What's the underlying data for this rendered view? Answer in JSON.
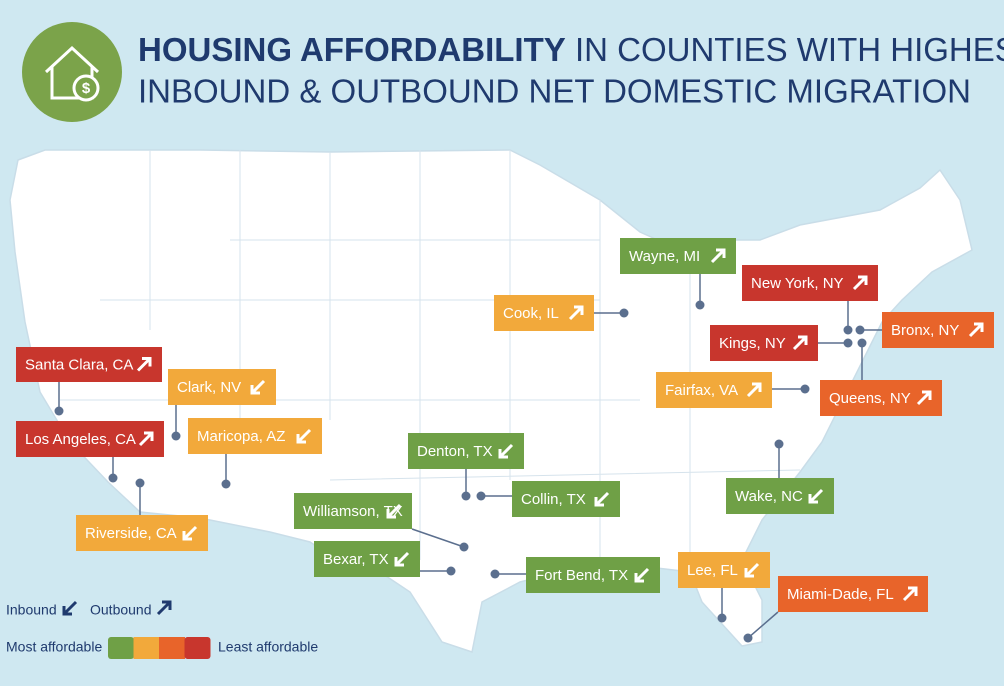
{
  "header": {
    "title_bold": "HOUSING AFFORDABILITY",
    "title_rest": "IN COUNTIES WITH HIGHEST",
    "title_line2": "INBOUND & OUTBOUND NET DOMESTIC MIGRATION"
  },
  "counties": [
    {
      "label": "Wayne, MI",
      "direction": "outbound",
      "color": "#6fa046"
    },
    {
      "label": "New York, NY",
      "direction": "outbound",
      "color": "#c8362d"
    },
    {
      "label": "Cook, IL",
      "direction": "outbound",
      "color": "#f2a93b"
    },
    {
      "label": "Kings, NY",
      "direction": "outbound",
      "color": "#c8362d"
    },
    {
      "label": "Bronx, NY",
      "direction": "outbound",
      "color": "#e8642a"
    },
    {
      "label": "Santa Clara, CA",
      "direction": "outbound",
      "color": "#c8362d"
    },
    {
      "label": "Clark, NV",
      "direction": "inbound",
      "color": "#f2a93b"
    },
    {
      "label": "Fairfax, VA",
      "direction": "outbound",
      "color": "#f2a93b"
    },
    {
      "label": "Queens, NY",
      "direction": "outbound",
      "color": "#e8642a"
    },
    {
      "label": "Los Angeles, CA",
      "direction": "outbound",
      "color": "#c8362d"
    },
    {
      "label": "Maricopa, AZ",
      "direction": "inbound",
      "color": "#f2a93b"
    },
    {
      "label": "Denton, TX",
      "direction": "inbound",
      "color": "#6fa046"
    },
    {
      "label": "Collin, TX",
      "direction": "inbound",
      "color": "#6fa046"
    },
    {
      "label": "Wake, NC",
      "direction": "inbound",
      "color": "#6fa046"
    },
    {
      "label": "Riverside, CA",
      "direction": "inbound",
      "color": "#f2a93b"
    },
    {
      "label": "Williamson, TX",
      "direction": "inbound",
      "color": "#6fa046"
    },
    {
      "label": "Bexar, TX",
      "direction": "inbound",
      "color": "#6fa046"
    },
    {
      "label": "Fort Bend, TX",
      "direction": "inbound",
      "color": "#6fa046"
    },
    {
      "label": "Lee, FL",
      "direction": "inbound",
      "color": "#f2a93b"
    },
    {
      "label": "Miami-Dade, FL",
      "direction": "outbound",
      "color": "#e8642a"
    }
  ],
  "legend": {
    "inbound": "Inbound",
    "outbound": "Outbound",
    "most": "Most affordable",
    "least": "Least affordable",
    "scale": [
      "#6fa046",
      "#f2a93b",
      "#e8642a",
      "#c8362d"
    ]
  }
}
